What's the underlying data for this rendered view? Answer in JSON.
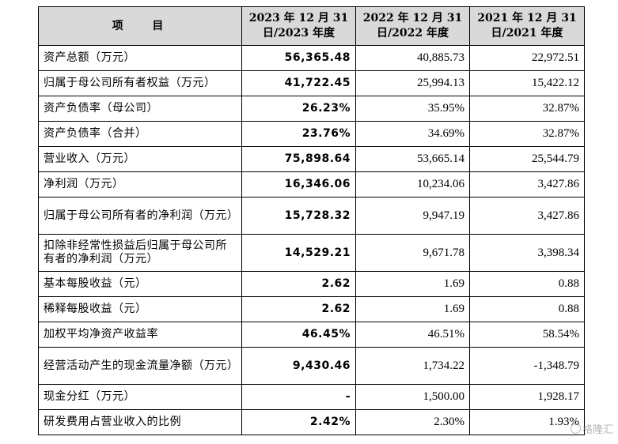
{
  "table": {
    "header": {
      "item": "项 目",
      "col2023": "2023 年 12 月 31 日/2023 年度",
      "col2022": "2022 年 12 月 31 日/2022 年度",
      "col2021": "2021 年 12 月 31 日/2021 年度"
    },
    "rows": [
      {
        "label": "资产总额（万元）",
        "v2023": "56,365.48",
        "v2022": "40,885.73",
        "v2021": "22,972.51"
      },
      {
        "label": "归属于母公司所有者权益（万元）",
        "v2023": "41,722.45",
        "v2022": "25,994.13",
        "v2021": "15,422.12"
      },
      {
        "label": "资产负债率（母公司）",
        "v2023": "26.23%",
        "v2022": "35.95%",
        "v2021": "32.87%"
      },
      {
        "label": "资产负债率（合并）",
        "v2023": "23.76%",
        "v2022": "34.69%",
        "v2021": "32.87%"
      },
      {
        "label": "营业收入（万元）",
        "v2023": "75,898.64",
        "v2022": "53,665.14",
        "v2021": "25,544.79"
      },
      {
        "label": "净利润（万元）",
        "v2023": "16,346.06",
        "v2022": "10,234.06",
        "v2021": "3,427.86"
      },
      {
        "label": "归属于母公司所有者的净利润（万元）",
        "v2023": "15,728.32",
        "v2022": "9,947.19",
        "v2021": "3,427.86"
      },
      {
        "label": "扣除非经常性损益后归属于母公司所有者的净利润（万元）",
        "v2023": "14,529.21",
        "v2022": "9,671.78",
        "v2021": "3,398.34"
      },
      {
        "label": "基本每股收益（元）",
        "v2023": "2.62",
        "v2022": "1.69",
        "v2021": "0.88"
      },
      {
        "label": "稀释每股收益（元）",
        "v2023": "2.62",
        "v2022": "1.69",
        "v2021": "0.88"
      },
      {
        "label": "加权平均净资产收益率",
        "v2023": "46.45%",
        "v2022": "46.51%",
        "v2021": "58.54%"
      },
      {
        "label": "经营活动产生的现金流量净额（万元）",
        "v2023": "9,430.46",
        "v2022": "1,734.22",
        "v2021": "-1,348.79"
      },
      {
        "label": "现金分红（万元）",
        "v2023": "-",
        "v2022": "1,500.00",
        "v2021": "1,928.17"
      },
      {
        "label": "研发费用占营业收入的比例",
        "v2023": "2.42%",
        "v2022": "2.30%",
        "v2021": "1.93%"
      }
    ]
  },
  "watermark": {
    "text": "格隆汇",
    "icon": "gelonghui-logo-icon"
  }
}
